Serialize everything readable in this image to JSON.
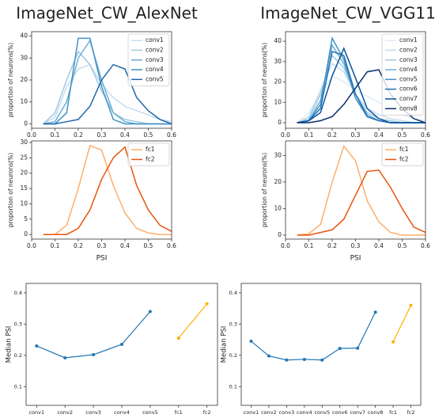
{
  "chart_data": [
    {
      "type": "line",
      "title": "ImageNet_CW_AlexNet",
      "ylabel": "proportion of neurons(%)",
      "x": [
        0.05,
        0.1,
        0.15,
        0.2,
        0.25,
        0.3,
        0.35,
        0.4,
        0.45,
        0.5,
        0.55,
        0.6
      ],
      "xlim": [
        0,
        0.6
      ],
      "xticks": [
        {
          "value": 0,
          "label": "0.0"
        },
        0.1,
        0.2,
        0.3,
        0.4,
        0.5,
        0.6
      ],
      "ylim": [
        -2,
        42
      ],
      "yticks": [
        0,
        10,
        20,
        30,
        40
      ],
      "legend": "upper right",
      "series": [
        {
          "name": "conv1",
          "color": "#c6dbef",
          "values": [
            0,
            3,
            17,
            25,
            27,
            18,
            12,
            8,
            6,
            4,
            2,
            1
          ]
        },
        {
          "name": "conv2",
          "color": "#9ecae1",
          "values": [
            0,
            5,
            20,
            33,
            27,
            15,
            5,
            2,
            1,
            0,
            0,
            0
          ]
        },
        {
          "name": "conv3",
          "color": "#6baed6",
          "values": [
            0,
            1,
            10,
            30,
            38,
            20,
            5,
            1,
            0,
            0,
            0,
            0
          ]
        },
        {
          "name": "conv4",
          "color": "#4292c6",
          "values": [
            0,
            0,
            5,
            39,
            39,
            17,
            2,
            0,
            0,
            0,
            0,
            0
          ]
        },
        {
          "name": "conv5",
          "color": "#2166ac",
          "values": [
            0,
            0,
            1,
            2,
            8,
            20,
            27,
            25,
            12,
            6,
            2,
            0
          ]
        }
      ]
    },
    {
      "type": "line",
      "ylabel": "proportion of neurons(%)",
      "xlabel": "PSI",
      "x": [
        0.05,
        0.1,
        0.15,
        0.2,
        0.25,
        0.3,
        0.35,
        0.4,
        0.45,
        0.5,
        0.55,
        0.6
      ],
      "xlim": [
        0,
        0.6
      ],
      "xticks": [
        {
          "value": 0,
          "label": "0.0"
        },
        0.1,
        0.2,
        0.3,
        0.4,
        0.5,
        0.6
      ],
      "ylim": [
        -1.5,
        30.5
      ],
      "yticks": [
        0,
        5,
        10,
        15,
        20,
        25,
        30
      ],
      "legend": "upper right",
      "series": [
        {
          "name": "fc1",
          "color": "#fdae6b",
          "values": [
            0,
            0,
            3,
            15,
            29,
            27.5,
            16,
            7,
            2,
            0.5,
            0,
            0
          ]
        },
        {
          "name": "fc2",
          "color": "#e6550d",
          "values": [
            0,
            0,
            0,
            2,
            8,
            18,
            25,
            28.5,
            16,
            8,
            3,
            1
          ]
        }
      ]
    },
    {
      "type": "line",
      "ylabel": "Median PSI",
      "categories": [
        "conv1",
        "conv2",
        "conv3",
        "conv4",
        "conv5",
        "fc1",
        "fc2"
      ],
      "ylim": [
        0.04,
        0.43
      ],
      "yticks": [
        0.1,
        0.2,
        0.3,
        0.4
      ],
      "series": [
        {
          "color": "#1f77b4",
          "values": [
            0.23,
            0.192,
            0.202,
            0.235,
            0.34,
            null,
            null
          ]
        },
        {
          "color": "#ffb000",
          "values": [
            null,
            null,
            null,
            null,
            null,
            0.255,
            0.365
          ]
        }
      ]
    },
    {
      "type": "line",
      "title": "ImageNet_CW_VGG11",
      "ylabel": "proportion of neurons(%)",
      "x": [
        0.05,
        0.1,
        0.15,
        0.2,
        0.25,
        0.3,
        0.35,
        0.4,
        0.45,
        0.5,
        0.55,
        0.6
      ],
      "xlim": [
        0,
        0.6
      ],
      "xticks": [
        {
          "value": 0,
          "label": "0.0"
        },
        0.1,
        0.2,
        0.3,
        0.4,
        0.5,
        0.6
      ],
      "ylim": [
        -2.7,
        44.7
      ],
      "yticks": [
        0,
        10,
        20,
        30,
        40
      ],
      "legend": "upper right",
      "series": [
        {
          "name": "conv1",
          "color": "#deebf7",
          "values": [
            0,
            5,
            14,
            23,
            20,
            16,
            13,
            10,
            7,
            4,
            2,
            1
          ]
        },
        {
          "name": "conv2",
          "color": "#c6dbef",
          "values": [
            0,
            3,
            16,
            29,
            25,
            14,
            7,
            4,
            2,
            1,
            0,
            0
          ]
        },
        {
          "name": "conv3",
          "color": "#9ecae1",
          "values": [
            0,
            2,
            14,
            33,
            27,
            14,
            5,
            2,
            1,
            0,
            0,
            0
          ]
        },
        {
          "name": "conv4",
          "color": "#6baed6",
          "values": [
            0,
            1,
            11,
            38,
            29,
            14,
            4,
            1,
            0,
            0,
            0,
            0
          ]
        },
        {
          "name": "conv5",
          "color": "#4292c6",
          "values": [
            0,
            1,
            9,
            41.5,
            31,
            12,
            3,
            1,
            0,
            0,
            0,
            0
          ]
        },
        {
          "name": "conv6",
          "color": "#2171b5",
          "values": [
            0,
            1,
            7,
            35,
            33,
            14,
            3,
            1,
            0,
            0,
            0,
            0
          ]
        },
        {
          "name": "conv7",
          "color": "#08519c",
          "values": [
            0,
            1,
            5,
            23,
            36.5,
            22,
            7,
            2,
            0,
            0,
            0,
            0
          ]
        },
        {
          "name": "conv8",
          "color": "#08306b",
          "values": [
            0,
            0,
            1,
            3,
            9,
            17,
            25,
            26,
            14,
            7,
            2,
            0
          ]
        }
      ]
    },
    {
      "type": "line",
      "ylabel": "proportion of neurons(%)",
      "xlabel": "PSI",
      "x": [
        0.05,
        0.1,
        0.15,
        0.2,
        0.25,
        0.3,
        0.35,
        0.4,
        0.45,
        0.5,
        0.55,
        0.6
      ],
      "xlim": [
        0,
        0.6
      ],
      "xticks": [
        {
          "value": 0,
          "label": "0.0"
        },
        0.1,
        0.2,
        0.3,
        0.4,
        0.5,
        0.6
      ],
      "ylim": [
        -1.5,
        35.5
      ],
      "yticks": [
        0,
        10,
        20,
        30
      ],
      "legend": "upper right",
      "series": [
        {
          "name": "fc1",
          "color": "#fdae6b",
          "values": [
            0,
            0.5,
            4,
            20,
            33.5,
            28,
            13,
            5,
            1,
            0,
            0,
            0
          ]
        },
        {
          "name": "fc2",
          "color": "#e6550d",
          "values": [
            0,
            0,
            1,
            2,
            6,
            15,
            24,
            24.5,
            18,
            10,
            3,
            1
          ]
        }
      ]
    },
    {
      "type": "line",
      "ylabel": "Median PSI",
      "categories": [
        "conv1",
        "conv2",
        "conv3",
        "conv4",
        "conv5",
        "conv6",
        "conv7",
        "conv8",
        "fc1",
        "fc2"
      ],
      "ylim": [
        0.04,
        0.43
      ],
      "yticks": [
        0.1,
        0.2,
        0.3,
        0.4
      ],
      "series": [
        {
          "color": "#1f77b4",
          "values": [
            0.245,
            0.198,
            0.185,
            0.187,
            0.185,
            0.222,
            0.223,
            0.338,
            null,
            null
          ]
        },
        {
          "color": "#ffb000",
          "values": [
            null,
            null,
            null,
            null,
            null,
            null,
            null,
            null,
            0.243,
            0.36
          ]
        }
      ]
    }
  ]
}
